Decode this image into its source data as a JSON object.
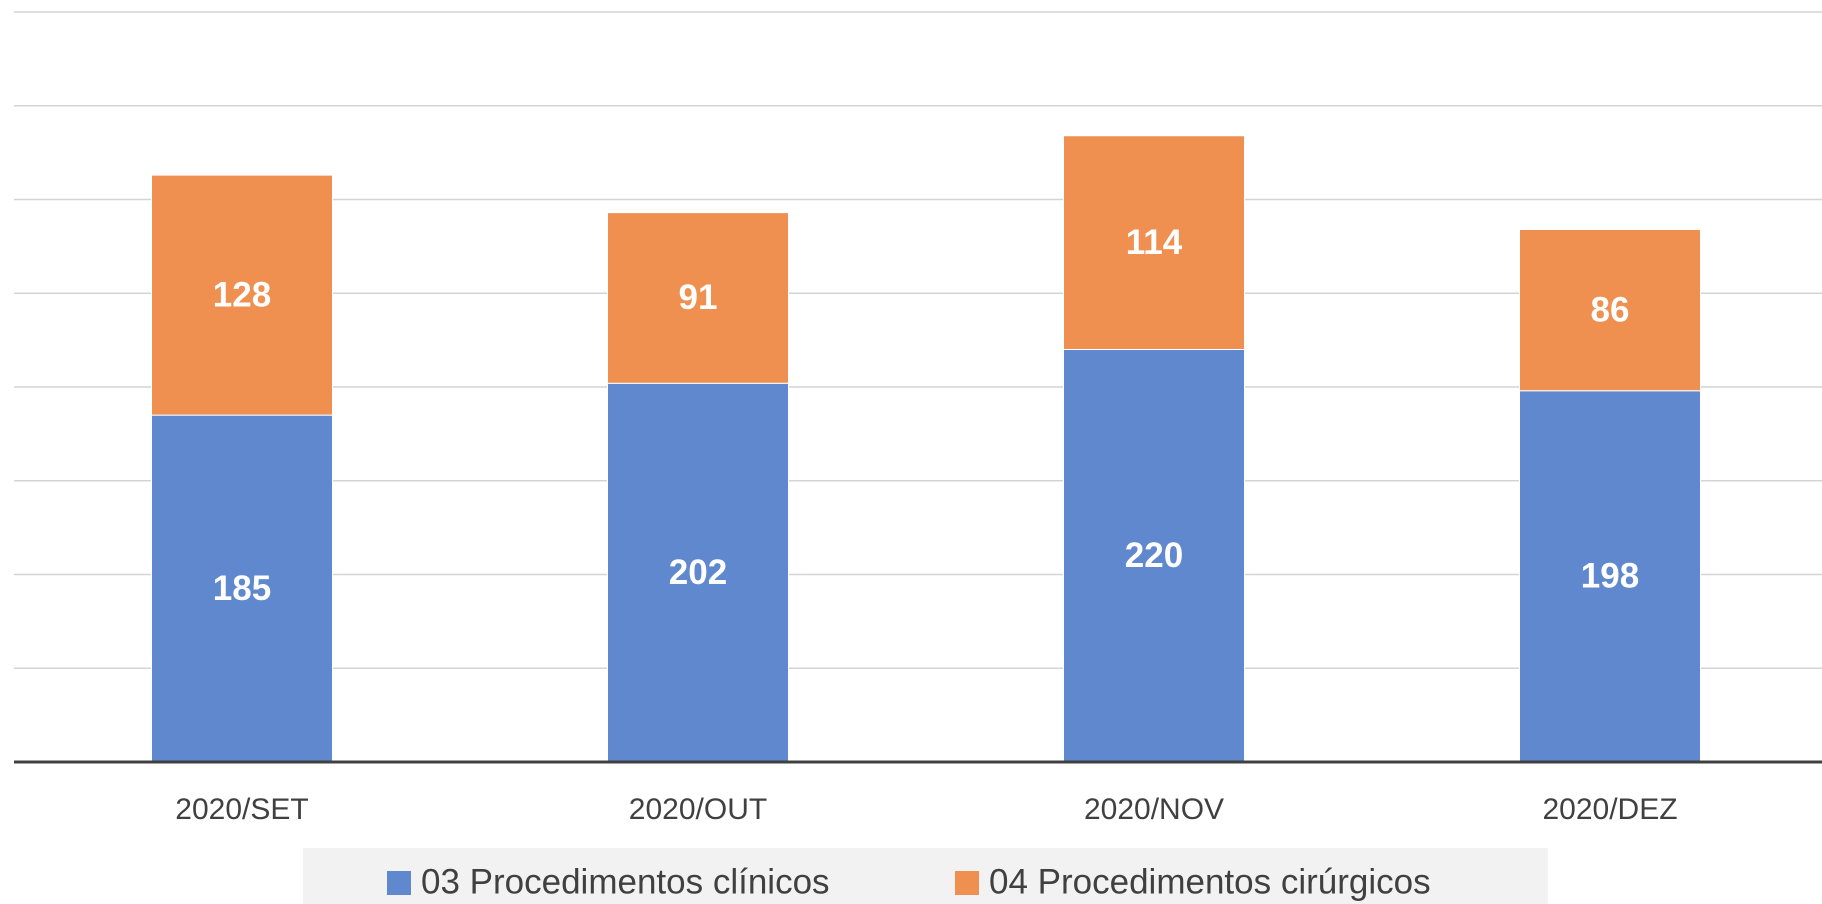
{
  "chart_data": {
    "type": "stacked_bar",
    "categories": [
      "2020/SET",
      "2020/OUT",
      "2020/NOV",
      "2020/DEZ"
    ],
    "series": [
      {
        "name": "03 Procedimentos clínicos",
        "color": "#6088cf",
        "values": [
          185,
          202,
          220,
          198
        ]
      },
      {
        "name": "04 Procedimentos cirúrgicos",
        "color": "#ef8f50",
        "values": [
          128,
          91,
          114,
          86
        ]
      }
    ],
    "ylim": [
      0,
      400
    ],
    "yticks": [
      0,
      50,
      100,
      150,
      200,
      250,
      300,
      350,
      400
    ],
    "grid": true,
    "legend": "bottom"
  }
}
